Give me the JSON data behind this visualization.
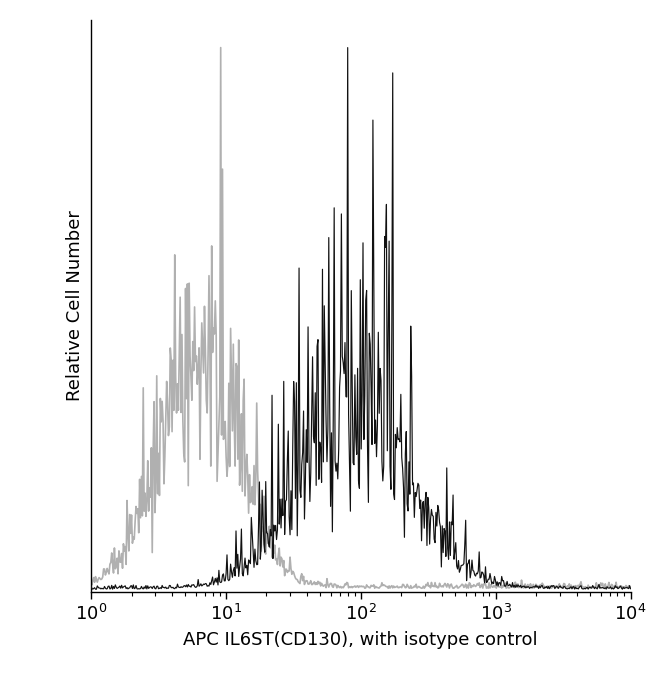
{
  "xlabel": "APC IL6ST(CD130), with isotype control",
  "ylabel": "Relative Cell Number",
  "xlim": [
    1,
    10000
  ],
  "ylim": [
    0,
    1.05
  ],
  "background_color": "#ffffff",
  "isotype_color": "#b0b0b0",
  "antibody_color": "#111111",
  "isotype_peak_log": 0.8,
  "isotype_sigma": 0.28,
  "antibody_peak_log": 1.95,
  "antibody_sigma": 0.4,
  "n_points": 600,
  "figsize": [
    6.5,
    6.8
  ],
  "dpi": 100
}
